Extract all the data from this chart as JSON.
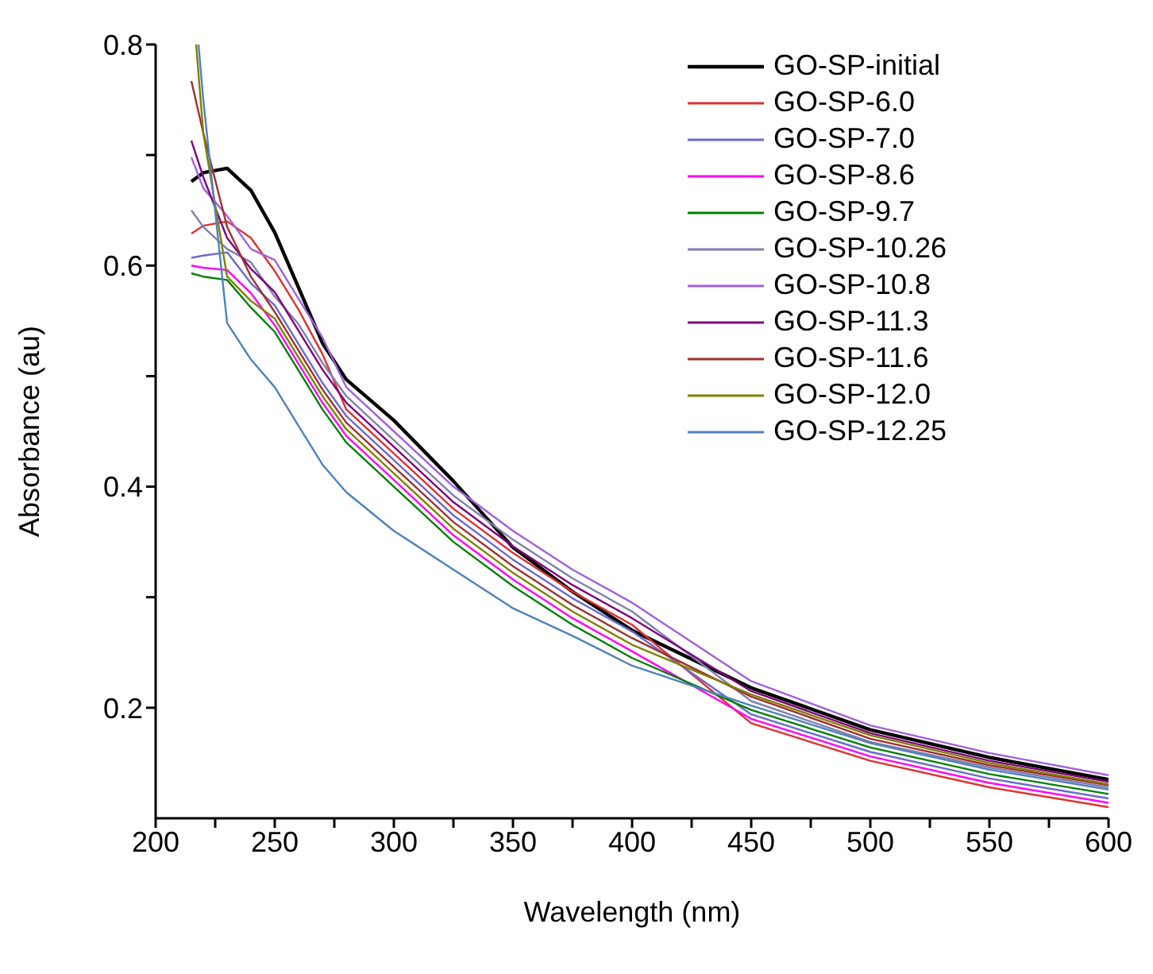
{
  "chart_data": {
    "type": "line",
    "xlabel": "Wavelength (nm)",
    "ylabel": "Absorbance (au)",
    "xlim": [
      200,
      600
    ],
    "ylim": [
      0.1,
      0.8
    ],
    "xticks": [
      200,
      {
        "value": 225,
        "label": null
      },
      250,
      {
        "value": 275,
        "label": null
      },
      300,
      {
        "value": 325,
        "label": null
      },
      350,
      {
        "value": 375,
        "label": null
      },
      400,
      {
        "value": 425,
        "label": null
      },
      450,
      {
        "value": 475,
        "label": null
      },
      500,
      {
        "value": 525,
        "label": null
      },
      550,
      {
        "value": 575,
        "label": null
      },
      600
    ],
    "yticks": [
      {
        "value": 0.3,
        "label": null
      },
      0.2,
      0.4,
      {
        "value": 0.5,
        "label": null
      },
      0.6,
      {
        "value": 0.7,
        "label": null
      },
      0.8
    ],
    "legend": "top right",
    "marker": "none",
    "line_style": "solid",
    "x": [
      215,
      220,
      230,
      240,
      250,
      260,
      270,
      280,
      300,
      325,
      350,
      375,
      400,
      450,
      500,
      550,
      600
    ],
    "series": [
      {
        "name": "GO-SP-initial",
        "color": "#000000",
        "values": [
          0.676,
          0.684,
          0.688,
          0.668,
          0.63,
          0.58,
          0.53,
          0.497,
          0.46,
          0.405,
          0.345,
          0.305,
          0.27,
          0.218,
          0.18,
          0.155,
          0.135
        ]
      },
      {
        "name": "GO-SP-6.0",
        "color": "#e03030",
        "values": [
          0.629,
          0.636,
          0.64,
          0.625,
          0.595,
          0.56,
          0.52,
          0.47,
          0.43,
          0.38,
          0.34,
          0.305,
          0.275,
          0.186,
          0.152,
          0.128,
          0.11
        ]
      },
      {
        "name": "GO-SP-7.0",
        "color": "#6a6ad0",
        "values": [
          0.607,
          0.609,
          0.612,
          0.584,
          0.564,
          0.529,
          0.494,
          0.464,
          0.424,
          0.374,
          0.334,
          0.299,
          0.269,
          0.194,
          0.16,
          0.136,
          0.118
        ]
      },
      {
        "name": "GO-SP-8.6",
        "color": "#ff00ff",
        "values": [
          0.6,
          0.598,
          0.596,
          0.575,
          0.546,
          0.511,
          0.476,
          0.446,
          0.406,
          0.356,
          0.316,
          0.281,
          0.251,
          0.19,
          0.156,
          0.132,
          0.114
        ]
      },
      {
        "name": "GO-SP-9.7",
        "color": "#008000",
        "values": [
          0.593,
          0.59,
          0.587,
          0.562,
          0.54,
          0.505,
          0.47,
          0.44,
          0.4,
          0.35,
          0.31,
          0.275,
          0.245,
          0.198,
          0.164,
          0.14,
          0.122
        ]
      },
      {
        "name": "GO-SP-10.26",
        "color": "#8080b0",
        "values": [
          0.65,
          0.635,
          0.615,
          0.603,
          0.572,
          0.547,
          0.512,
          0.482,
          0.442,
          0.392,
          0.352,
          0.317,
          0.287,
          0.206,
          0.169,
          0.146,
          0.128
        ]
      },
      {
        "name": "GO-SP-10.8",
        "color": "#a060e0",
        "values": [
          0.698,
          0.67,
          0.645,
          0.615,
          0.605,
          0.57,
          0.535,
          0.49,
          0.45,
          0.4,
          0.36,
          0.325,
          0.295,
          0.224,
          0.184,
          0.159,
          0.139
        ]
      },
      {
        "name": "GO-SP-11.3",
        "color": "#800080",
        "values": [
          0.713,
          0.68,
          0.625,
          0.597,
          0.576,
          0.541,
          0.506,
          0.476,
          0.436,
          0.386,
          0.346,
          0.311,
          0.281,
          0.215,
          0.177,
          0.152,
          0.133
        ]
      },
      {
        "name": "GO-SP-11.6",
        "color": "#a03030",
        "values": [
          0.767,
          0.72,
          0.635,
          0.59,
          0.558,
          0.523,
          0.488,
          0.458,
          0.418,
          0.368,
          0.328,
          0.293,
          0.263,
          0.21,
          0.172,
          0.148,
          0.13
        ]
      },
      {
        "name": "GO-SP-12.0",
        "color": "#808000",
        "x": [
          217,
          220,
          230,
          240,
          250,
          260,
          270,
          280,
          300,
          325,
          350,
          375,
          400,
          450,
          500,
          550,
          600
        ],
        "values": [
          0.8,
          0.72,
          0.59,
          0.568,
          0.552,
          0.517,
          0.482,
          0.452,
          0.412,
          0.362,
          0.322,
          0.287,
          0.257,
          0.212,
          0.175,
          0.15,
          0.131
        ]
      },
      {
        "name": "GO-SP-12.25",
        "color": "#4f81bd",
        "x": [
          218,
          220,
          230,
          240,
          250,
          260,
          270,
          280,
          300,
          325,
          350,
          375,
          400,
          450,
          500,
          550,
          600
        ],
        "values": [
          0.8,
          0.75,
          0.548,
          0.515,
          0.49,
          0.455,
          0.42,
          0.395,
          0.36,
          0.325,
          0.29,
          0.265,
          0.238,
          0.202,
          0.168,
          0.144,
          0.126
        ]
      }
    ]
  }
}
